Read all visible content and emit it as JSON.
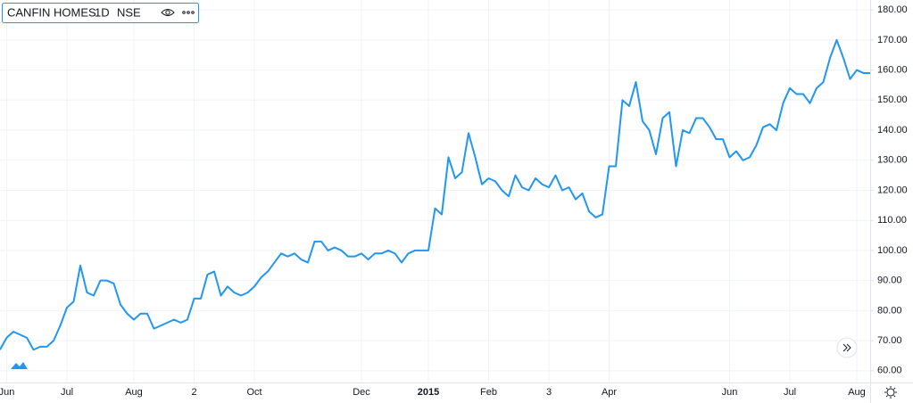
{
  "chart_data": {
    "type": "line",
    "title": "CANFIN HOMES",
    "interval": "1D",
    "exchange": "NSE",
    "categories": [
      null,
      "Jun",
      null,
      null,
      null,
      null,
      null,
      null,
      null,
      null,
      "Jul",
      null,
      null,
      null,
      null,
      null,
      null,
      null,
      null,
      null,
      "Aug",
      null,
      null,
      null,
      null,
      null,
      null,
      null,
      null,
      "2",
      null,
      null,
      null,
      null,
      null,
      null,
      null,
      null,
      "Oct",
      null,
      null,
      null,
      null,
      null,
      null,
      null,
      null,
      null,
      null,
      null,
      null,
      null,
      null,
      null,
      "Dec",
      null,
      null,
      null,
      null,
      null,
      null,
      null,
      null,
      null,
      "2015",
      null,
      null,
      null,
      null,
      null,
      null,
      null,
      null,
      "Feb",
      null,
      null,
      null,
      null,
      null,
      null,
      null,
      null,
      "3",
      null,
      null,
      null,
      null,
      null,
      null,
      null,
      null,
      "Apr",
      null,
      null,
      null,
      null,
      null,
      null,
      null,
      null,
      null,
      null,
      null,
      null,
      null,
      null,
      null,
      null,
      null,
      "Jun",
      null,
      null,
      null,
      null,
      null,
      null,
      null,
      null,
      "Jul",
      null,
      null,
      null,
      null,
      null,
      null,
      null,
      null,
      null,
      "Aug",
      null,
      null
    ],
    "values": [
      67,
      71,
      73,
      72,
      71,
      67,
      68,
      68,
      70,
      75,
      81,
      83,
      95,
      86,
      85,
      90,
      90,
      89,
      82,
      79,
      77,
      79,
      79,
      74,
      75,
      76,
      77,
      76,
      77,
      84,
      84,
      92,
      93,
      85,
      88,
      86,
      85,
      86,
      88,
      91,
      93,
      96,
      99,
      98,
      99,
      97,
      96,
      103,
      103,
      100,
      101,
      100,
      98,
      98,
      99,
      97,
      99,
      99,
      100,
      99,
      96,
      99,
      100,
      100,
      100,
      114,
      112,
      131,
      124,
      126,
      139,
      131,
      122,
      124,
      123,
      120,
      118,
      125,
      121,
      120,
      124,
      122,
      121,
      125,
      120,
      121,
      117,
      119,
      113,
      111,
      112,
      128,
      128,
      150,
      148,
      156,
      143,
      140,
      132,
      144,
      146,
      128,
      140,
      139,
      144,
      144,
      141,
      137,
      137,
      131,
      133,
      130,
      131,
      135,
      141,
      142,
      140,
      149,
      154,
      152,
      152,
      149,
      154,
      156,
      164,
      170,
      164,
      157,
      160,
      159,
      159
    ],
    "color": "#2196f3",
    "ylim": [
      55.8,
      183.3
    ],
    "yticks": [
      {
        "value": 60,
        "label": "60.00"
      },
      {
        "value": 70,
        "label": "70.00"
      },
      {
        "value": 80,
        "label": "80.00"
      },
      {
        "value": 90,
        "label": "90.00"
      },
      {
        "value": 100,
        "label": "100.00"
      },
      {
        "value": 110,
        "label": "110.00"
      },
      {
        "value": 120,
        "label": "120.00"
      },
      {
        "value": 130,
        "label": "130.00"
      },
      {
        "value": 140,
        "label": "140.00"
      },
      {
        "value": 150,
        "label": "150.00"
      },
      {
        "value": 160,
        "label": "160.00"
      },
      {
        "value": 170,
        "label": "170.00"
      },
      {
        "value": 180,
        "label": "180.00"
      }
    ],
    "grid": true
  }
}
